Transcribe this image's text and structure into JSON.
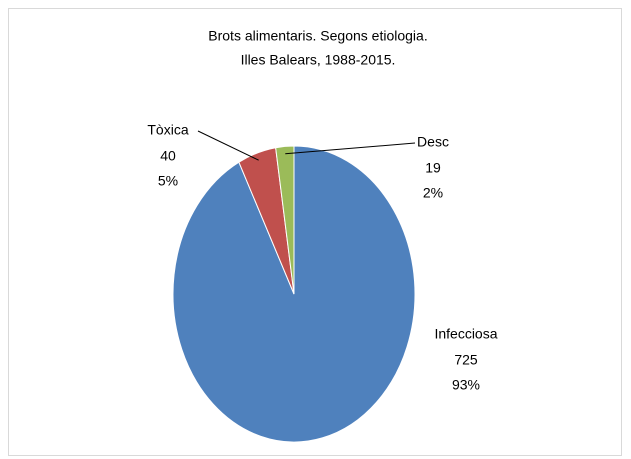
{
  "chart_data": {
    "type": "pie",
    "title": "Brots alimentaris. Segons etiologia.",
    "subtitle": "Illes Balears, 1988-2015.",
    "categories": [
      "Infecciosa",
      "Tòxica",
      "Desc"
    ],
    "values": [
      725,
      40,
      19
    ],
    "percent_labels": [
      "93%",
      "5%",
      "2%"
    ],
    "colors": [
      "#4f81bd",
      "#c0504d",
      "#9bbb59"
    ]
  }
}
